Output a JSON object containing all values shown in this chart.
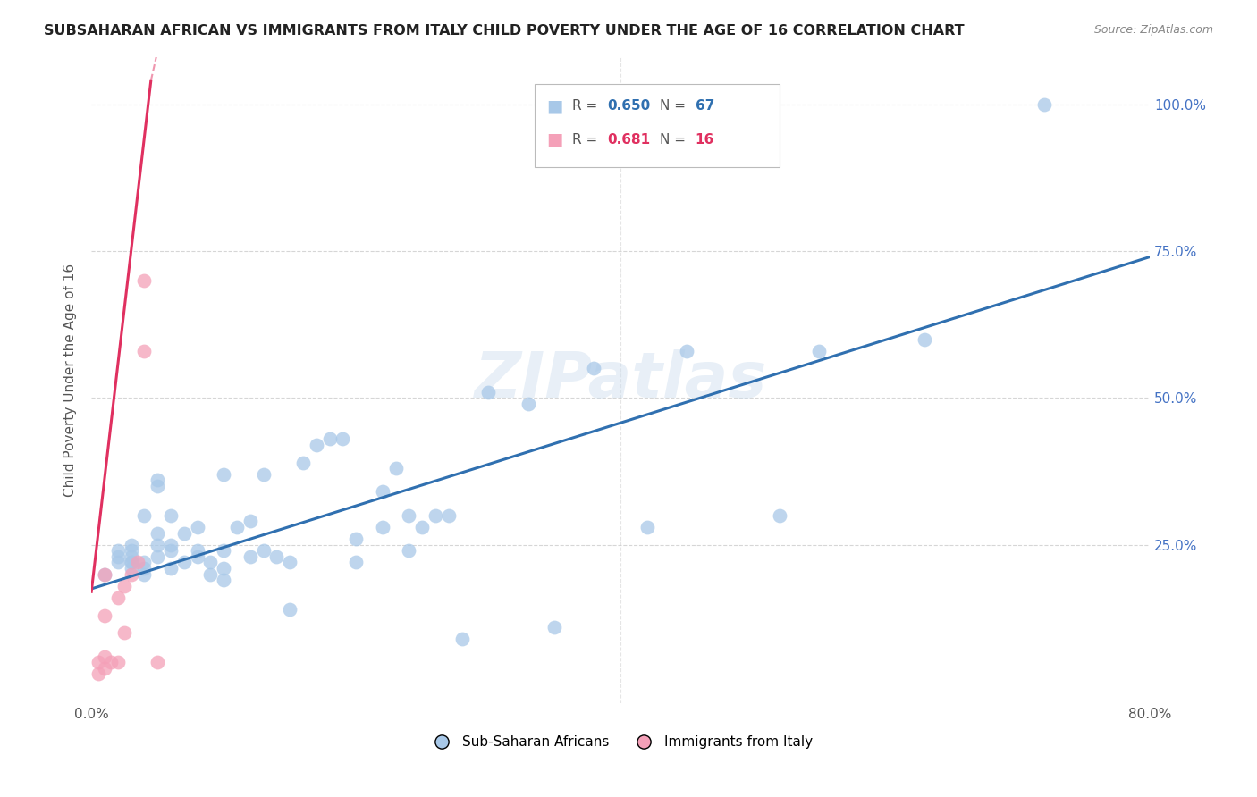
{
  "title": "SUBSAHARAN AFRICAN VS IMMIGRANTS FROM ITALY CHILD POVERTY UNDER THE AGE OF 16 CORRELATION CHART",
  "source": "Source: ZipAtlas.com",
  "ylabel": "Child Poverty Under the Age of 16",
  "xlim": [
    0.0,
    0.8
  ],
  "ylim": [
    -0.02,
    1.08
  ],
  "blue_R": 0.65,
  "blue_N": 67,
  "pink_R": 0.681,
  "pink_N": 16,
  "blue_color": "#a8c8e8",
  "pink_color": "#f4a0b8",
  "blue_line_color": "#3070b0",
  "pink_line_color": "#e03060",
  "watermark": "ZIPatlas",
  "blue_scatter_x": [
    0.01,
    0.02,
    0.02,
    0.02,
    0.03,
    0.03,
    0.03,
    0.03,
    0.03,
    0.03,
    0.04,
    0.04,
    0.04,
    0.04,
    0.05,
    0.05,
    0.05,
    0.05,
    0.05,
    0.06,
    0.06,
    0.06,
    0.06,
    0.07,
    0.07,
    0.08,
    0.08,
    0.08,
    0.09,
    0.09,
    0.1,
    0.1,
    0.1,
    0.1,
    0.11,
    0.12,
    0.12,
    0.13,
    0.13,
    0.14,
    0.15,
    0.15,
    0.16,
    0.17,
    0.18,
    0.19,
    0.2,
    0.2,
    0.22,
    0.22,
    0.23,
    0.24,
    0.24,
    0.25,
    0.26,
    0.27,
    0.28,
    0.3,
    0.33,
    0.35,
    0.38,
    0.42,
    0.45,
    0.52,
    0.55,
    0.63,
    0.72
  ],
  "blue_scatter_y": [
    0.2,
    0.22,
    0.23,
    0.24,
    0.21,
    0.22,
    0.22,
    0.23,
    0.24,
    0.25,
    0.2,
    0.21,
    0.22,
    0.3,
    0.23,
    0.25,
    0.27,
    0.35,
    0.36,
    0.21,
    0.24,
    0.25,
    0.3,
    0.22,
    0.27,
    0.23,
    0.24,
    0.28,
    0.2,
    0.22,
    0.19,
    0.21,
    0.24,
    0.37,
    0.28,
    0.23,
    0.29,
    0.24,
    0.37,
    0.23,
    0.14,
    0.22,
    0.39,
    0.42,
    0.43,
    0.43,
    0.22,
    0.26,
    0.28,
    0.34,
    0.38,
    0.24,
    0.3,
    0.28,
    0.3,
    0.3,
    0.09,
    0.51,
    0.49,
    0.11,
    0.55,
    0.28,
    0.58,
    0.3,
    0.58,
    0.6,
    1.0
  ],
  "pink_scatter_x": [
    0.005,
    0.005,
    0.01,
    0.01,
    0.01,
    0.01,
    0.015,
    0.02,
    0.02,
    0.025,
    0.025,
    0.03,
    0.035,
    0.04,
    0.04,
    0.05
  ],
  "pink_scatter_y": [
    0.03,
    0.05,
    0.04,
    0.06,
    0.13,
    0.2,
    0.05,
    0.05,
    0.16,
    0.1,
    0.18,
    0.2,
    0.22,
    0.58,
    0.7,
    0.05
  ],
  "pink_line_x0": 0.0,
  "pink_line_y0": 0.17,
  "pink_line_x1": 0.045,
  "pink_line_y1": 1.04,
  "blue_line_x0": 0.0,
  "blue_line_y0": 0.175,
  "blue_line_x1": 0.8,
  "blue_line_y1": 0.74
}
